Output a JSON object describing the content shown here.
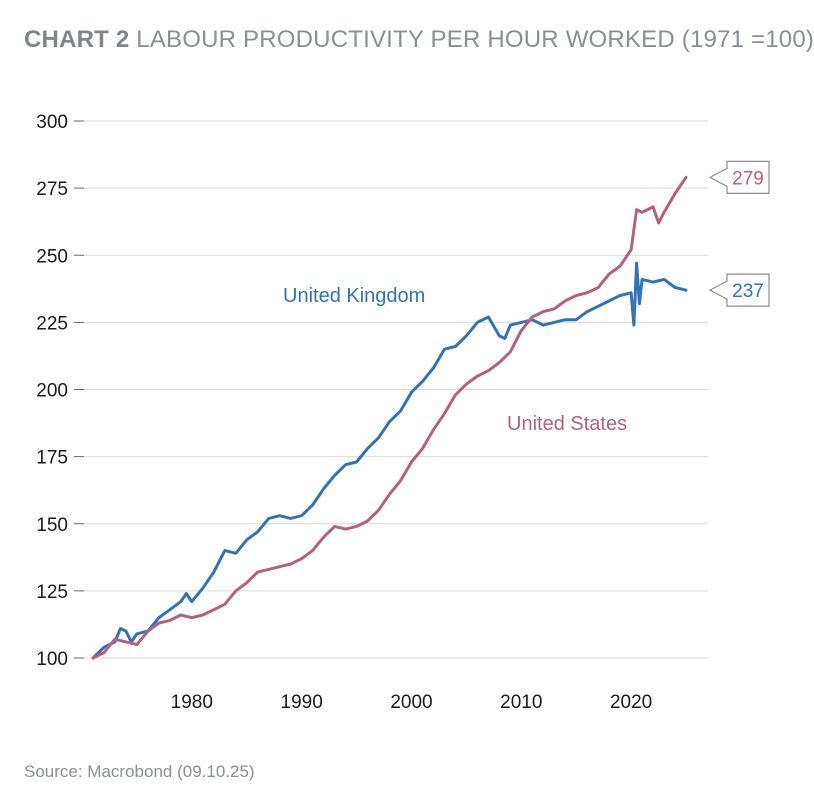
{
  "title": {
    "lead": "CHART 2",
    "text": "LABOUR PRODUCTIVITY PER HOUR WORKED (1971 =100)"
  },
  "source": "Source: Macrobond (09.10.25)",
  "colors": {
    "uk": "#2f74b9",
    "us": "#b6607f",
    "grid": "#d9d9d9",
    "axis_text": "#1a1a1a"
  },
  "chart_data": {
    "type": "line",
    "title": "LABOUR PRODUCTIVITY PER HOUR WORKED (1971 =100)",
    "xlim": [
      1970,
      2027
    ],
    "ylim": [
      100,
      300
    ],
    "xticks": [
      1980,
      1990,
      2000,
      2010,
      2020
    ],
    "yticks": [
      100,
      125,
      150,
      175,
      200,
      225,
      250,
      275,
      300
    ],
    "grid": "horizontal",
    "series": [
      {
        "name": "United Kingdom",
        "color": "#2f74b9",
        "end_label": "237",
        "x": [
          1971,
          1972,
          1973,
          1973.5,
          1974,
          1974.5,
          1975,
          1976,
          1977,
          1978,
          1979,
          1979.5,
          1980,
          1981,
          1982,
          1983,
          1984,
          1985,
          1986,
          1987,
          1988,
          1989,
          1990,
          1991,
          1992,
          1993,
          1994,
          1995,
          1996,
          1997,
          1998,
          1999,
          2000,
          2001,
          2002,
          2003,
          2004,
          2005,
          2006,
          2007,
          2008,
          2008.5,
          2009,
          2010,
          2011,
          2012,
          2013,
          2014,
          2015,
          2016,
          2017,
          2018,
          2019,
          2020,
          2020.25,
          2020.5,
          2020.75,
          2021,
          2022,
          2023,
          2024,
          2025
        ],
        "y": [
          100,
          104,
          106,
          111,
          110,
          106,
          109,
          110,
          115,
          118,
          121,
          124,
          121,
          126,
          132,
          140,
          139,
          144,
          147,
          152,
          153,
          152,
          153,
          157,
          163,
          168,
          172,
          173,
          178,
          182,
          188,
          192,
          199,
          203,
          208,
          215,
          216,
          220,
          225,
          227,
          220,
          219,
          224,
          225,
          226,
          224,
          225,
          226,
          226,
          229,
          231,
          233,
          235,
          236,
          224,
          247,
          232,
          241,
          240,
          241,
          238,
          237
        ]
      },
      {
        "name": "United States",
        "color": "#b6607f",
        "end_label": "279",
        "x": [
          1971,
          1972,
          1973,
          1974,
          1975,
          1976,
          1977,
          1978,
          1979,
          1980,
          1981,
          1982,
          1983,
          1984,
          1985,
          1986,
          1987,
          1988,
          1989,
          1990,
          1991,
          1992,
          1993,
          1994,
          1995,
          1996,
          1997,
          1998,
          1999,
          2000,
          2001,
          2002,
          2003,
          2004,
          2005,
          2006,
          2007,
          2008,
          2009,
          2010,
          2011,
          2012,
          2013,
          2014,
          2015,
          2016,
          2017,
          2018,
          2019,
          2020,
          2020.5,
          2021,
          2022,
          2022.5,
          2023,
          2024,
          2025
        ],
        "y": [
          100,
          102,
          107,
          106,
          105,
          110,
          113,
          114,
          116,
          115,
          116,
          118,
          120,
          125,
          128,
          132,
          133,
          134,
          135,
          137,
          140,
          145,
          149,
          148,
          149,
          151,
          155,
          161,
          166,
          173,
          178,
          185,
          191,
          198,
          202,
          205,
          207,
          210,
          214,
          222,
          227,
          229,
          230,
          233,
          235,
          236,
          238,
          243,
          246,
          252,
          267,
          266,
          268,
          262,
          266,
          273,
          279
        ]
      }
    ]
  }
}
